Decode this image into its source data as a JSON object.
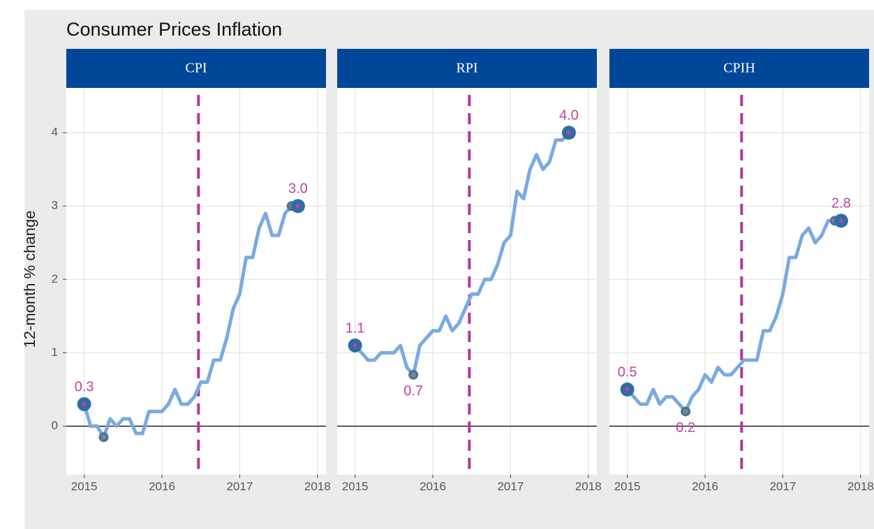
{
  "title": "Consumer Prices Inflation",
  "ylabel": "12-month % change",
  "chart_data": [
    {
      "type": "line",
      "title": "CPI",
      "x": [
        2015,
        2015.083,
        2015.167,
        2015.25,
        2015.333,
        2015.417,
        2015.5,
        2015.583,
        2015.667,
        2015.75,
        2015.833,
        2015.917,
        2016,
        2016.083,
        2016.167,
        2016.25,
        2016.333,
        2016.417,
        2016.5,
        2016.583,
        2016.667,
        2016.75,
        2016.833,
        2016.917,
        2017,
        2017.083,
        2017.167,
        2017.25,
        2017.333,
        2017.417,
        2017.5,
        2017.583,
        2017.667,
        2017.75
      ],
      "values": [
        0.3,
        0.0,
        0.0,
        -0.15,
        0.1,
        0.0,
        0.1,
        0.1,
        -0.1,
        -0.1,
        0.2,
        0.2,
        0.2,
        0.3,
        0.5,
        0.3,
        0.3,
        0.4,
        0.6,
        0.6,
        0.9,
        0.9,
        1.2,
        1.6,
        1.8,
        2.3,
        2.3,
        2.7,
        2.9,
        2.6,
        2.6,
        2.9,
        3.0,
        3.0
      ],
      "highlight": [
        {
          "index": 0,
          "label": "0.3"
        },
        {
          "index": 3
        },
        {
          "index": 32
        },
        {
          "index": 33,
          "label": "3.0"
        }
      ],
      "color": "#7aaae0",
      "vline": 2016.47,
      "hline": 0,
      "xlim": [
        2014.77,
        2018.11
      ],
      "xticks": [
        2015,
        2016,
        2017,
        2018
      ],
      "ylim": [
        -0.66,
        4.61
      ],
      "yticks": [
        0,
        1,
        2,
        3,
        4
      ],
      "grid": true
    },
    {
      "type": "line",
      "title": "RPI",
      "x": [
        2015,
        2015.083,
        2015.167,
        2015.25,
        2015.333,
        2015.417,
        2015.5,
        2015.583,
        2015.667,
        2015.75,
        2015.833,
        2015.917,
        2016,
        2016.083,
        2016.167,
        2016.25,
        2016.333,
        2016.417,
        2016.5,
        2016.583,
        2016.667,
        2016.75,
        2016.833,
        2016.917,
        2017,
        2017.083,
        2017.167,
        2017.25,
        2017.333,
        2017.417,
        2017.5,
        2017.583,
        2017.667,
        2017.75
      ],
      "values": [
        1.1,
        1.0,
        0.9,
        0.9,
        1.0,
        1.0,
        1.0,
        1.1,
        0.8,
        0.7,
        1.1,
        1.2,
        1.3,
        1.3,
        1.5,
        1.3,
        1.4,
        1.6,
        1.8,
        1.8,
        2.0,
        2.0,
        2.2,
        2.5,
        2.6,
        3.2,
        3.1,
        3.5,
        3.7,
        3.5,
        3.6,
        3.9,
        3.9,
        4.0
      ],
      "highlight": [
        {
          "index": 0,
          "label": "1.1"
        },
        {
          "index": 9,
          "label": "0.7"
        },
        {
          "index": 33,
          "label": "4.0"
        }
      ],
      "color": "#7aaae0",
      "vline": 2016.47,
      "hline": 0,
      "xlim": [
        2014.77,
        2018.11
      ],
      "xticks": [
        2015,
        2016,
        2017,
        2018
      ],
      "ylim": [
        -0.66,
        4.61
      ],
      "yticks": [
        0,
        1,
        2,
        3,
        4
      ],
      "grid": true
    },
    {
      "type": "line",
      "title": "CPIH",
      "x": [
        2015,
        2015.083,
        2015.167,
        2015.25,
        2015.333,
        2015.417,
        2015.5,
        2015.583,
        2015.667,
        2015.75,
        2015.833,
        2015.917,
        2016,
        2016.083,
        2016.167,
        2016.25,
        2016.333,
        2016.417,
        2016.5,
        2016.583,
        2016.667,
        2016.75,
        2016.833,
        2016.917,
        2017,
        2017.083,
        2017.167,
        2017.25,
        2017.333,
        2017.417,
        2017.5,
        2017.583,
        2017.667,
        2017.75
      ],
      "values": [
        0.5,
        0.4,
        0.3,
        0.3,
        0.5,
        0.3,
        0.4,
        0.4,
        0.3,
        0.2,
        0.4,
        0.5,
        0.7,
        0.6,
        0.8,
        0.7,
        0.7,
        0.8,
        0.9,
        0.9,
        0.9,
        1.3,
        1.3,
        1.5,
        1.8,
        2.3,
        2.3,
        2.6,
        2.7,
        2.5,
        2.6,
        2.8,
        2.8,
        2.8
      ],
      "highlight": [
        {
          "index": 0,
          "label": "0.5"
        },
        {
          "index": 9,
          "label": "0.2"
        },
        {
          "index": 32
        },
        {
          "index": 33,
          "label": "2.8"
        }
      ],
      "color": "#7aaae0",
      "vline": 2016.47,
      "hline": 0,
      "xlim": [
        2014.77,
        2018.11
      ],
      "xticks": [
        2015,
        2016,
        2017,
        2018
      ],
      "ylim": [
        -0.66,
        4.61
      ],
      "yticks": [
        0,
        1,
        2,
        3,
        4
      ],
      "grid": true
    }
  ]
}
